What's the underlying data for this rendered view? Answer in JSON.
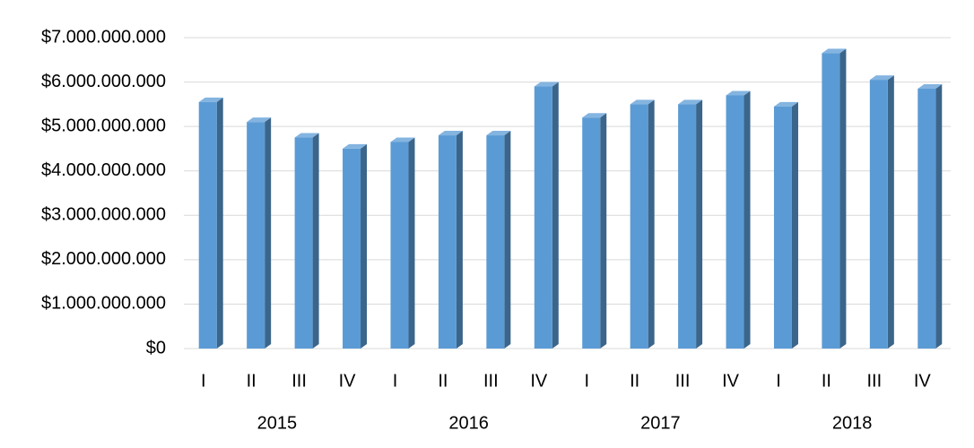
{
  "chart_data": {
    "type": "bar",
    "categories": [
      "I",
      "II",
      "III",
      "IV",
      "I",
      "II",
      "III",
      "IV",
      "I",
      "II",
      "III",
      "IV",
      "I",
      "II",
      "III",
      "IV"
    ],
    "category_groups": [
      "2015",
      "2016",
      "2017",
      "2018"
    ],
    "values": [
      5550000000,
      5100000000,
      4750000000,
      4500000000,
      4650000000,
      4800000000,
      4800000000,
      5900000000,
      5200000000,
      5500000000,
      5500000000,
      5700000000,
      5450000000,
      6650000000,
      6050000000,
      5850000000
    ],
    "color": "#5b9bd5",
    "ylim": [
      0,
      7000000000
    ],
    "yticks": [
      {
        "value": 0,
        "label": "$0"
      },
      {
        "value": 1000000000,
        "label": "$1.000.000.000"
      },
      {
        "value": 2000000000,
        "label": "$2.000.000.000"
      },
      {
        "value": 3000000000,
        "label": "$3.000.000.000"
      },
      {
        "value": 4000000000,
        "label": "$4.000.000.000"
      },
      {
        "value": 5000000000,
        "label": "$5.000.000.000"
      },
      {
        "value": 6000000000,
        "label": "$6.000.000.000"
      },
      {
        "value": 7000000000,
        "label": "$7.000.000.000"
      }
    ],
    "grid": true
  }
}
